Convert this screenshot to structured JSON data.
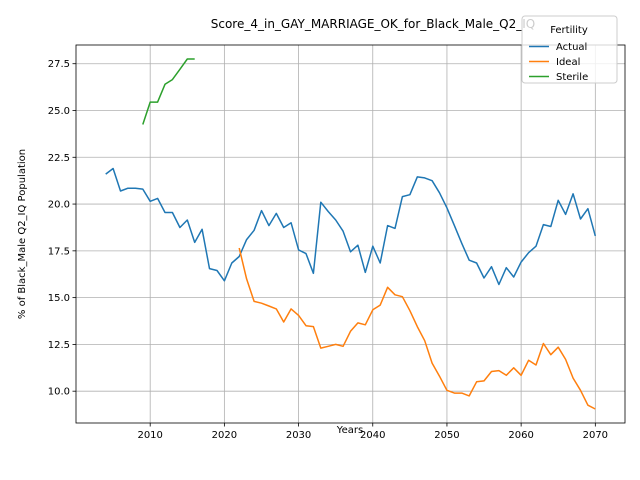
{
  "chart_data": {
    "type": "line",
    "title": "Score_4_in_GAY_MARRIAGE_OK_for_Black_Male_Q2_IQ",
    "xlabel": "Years",
    "ylabel": "% of Black_Male Q2_IQ Population",
    "xlim": [
      2000,
      2074
    ],
    "ylim": [
      8.3,
      28.5
    ],
    "x_ticks": [
      2010,
      2020,
      2030,
      2040,
      2050,
      2060,
      2070
    ],
    "y_ticks": [
      10.0,
      12.5,
      15.0,
      17.5,
      20.0,
      22.5,
      25.0,
      27.5
    ],
    "x_tick_labels": [
      "2010",
      "2020",
      "2030",
      "2040",
      "2050",
      "2060",
      "2070"
    ],
    "y_tick_labels": [
      "10.0",
      "12.5",
      "15.0",
      "17.5",
      "20.0",
      "22.5",
      "25.0",
      "27.5"
    ],
    "grid": true,
    "legend": {
      "title": "Fertility",
      "placement": "top-right"
    },
    "series": [
      {
        "name": "Actual",
        "color": "#1f77b4",
        "points": [
          [
            2004,
            21.6
          ],
          [
            2005,
            21.9
          ],
          [
            2006,
            20.7
          ],
          [
            2007,
            20.85
          ],
          [
            2008,
            20.85
          ],
          [
            2009,
            20.8
          ],
          [
            2010,
            20.15
          ],
          [
            2011,
            20.3
          ],
          [
            2012,
            19.55
          ],
          [
            2013,
            19.55
          ],
          [
            2014,
            18.75
          ],
          [
            2015,
            19.15
          ],
          [
            2016,
            17.95
          ],
          [
            2017,
            18.65
          ],
          [
            2018,
            16.55
          ],
          [
            2019,
            16.45
          ],
          [
            2020,
            15.9
          ],
          [
            2021,
            16.85
          ],
          [
            2022,
            17.2
          ],
          [
            2023,
            18.1
          ],
          [
            2024,
            18.6
          ],
          [
            2025,
            19.65
          ],
          [
            2026,
            18.85
          ],
          [
            2027,
            19.5
          ],
          [
            2028,
            18.75
          ],
          [
            2029,
            19.0
          ],
          [
            2030,
            17.55
          ],
          [
            2031,
            17.35
          ],
          [
            2032,
            16.3
          ],
          [
            2033,
            20.1
          ],
          [
            2034,
            19.6
          ],
          [
            2035,
            19.15
          ],
          [
            2036,
            18.55
          ],
          [
            2037,
            17.45
          ],
          [
            2038,
            17.8
          ],
          [
            2039,
            16.35
          ],
          [
            2040,
            17.75
          ],
          [
            2041,
            16.85
          ],
          [
            2042,
            18.85
          ],
          [
            2043,
            18.7
          ],
          [
            2044,
            20.4
          ],
          [
            2045,
            20.5
          ],
          [
            2046,
            21.45
          ],
          [
            2047,
            21.4
          ],
          [
            2048,
            21.25
          ],
          [
            2049,
            20.6
          ],
          [
            2050,
            19.8
          ],
          [
            2051,
            18.85
          ],
          [
            2052,
            17.9
          ],
          [
            2053,
            17.0
          ],
          [
            2054,
            16.85
          ],
          [
            2055,
            16.05
          ],
          [
            2056,
            16.65
          ],
          [
            2057,
            15.7
          ],
          [
            2058,
            16.6
          ],
          [
            2059,
            16.1
          ],
          [
            2060,
            16.9
          ],
          [
            2061,
            17.4
          ],
          [
            2062,
            17.75
          ],
          [
            2063,
            18.9
          ],
          [
            2064,
            18.8
          ],
          [
            2065,
            20.2
          ],
          [
            2066,
            19.45
          ],
          [
            2067,
            20.55
          ],
          [
            2068,
            19.2
          ],
          [
            2069,
            19.75
          ],
          [
            2070,
            18.3
          ]
        ]
      },
      {
        "name": "Ideal",
        "color": "#ff7f0e",
        "points": [
          [
            2022,
            17.65
          ],
          [
            2023,
            16.0
          ],
          [
            2024,
            14.8
          ],
          [
            2025,
            14.7
          ],
          [
            2026,
            14.55
          ],
          [
            2027,
            14.4
          ],
          [
            2028,
            13.7
          ],
          [
            2029,
            14.4
          ],
          [
            2030,
            14.05
          ],
          [
            2031,
            13.5
          ],
          [
            2032,
            13.45
          ],
          [
            2033,
            12.3
          ],
          [
            2034,
            12.4
          ],
          [
            2035,
            12.5
          ],
          [
            2036,
            12.4
          ],
          [
            2037,
            13.2
          ],
          [
            2038,
            13.65
          ],
          [
            2039,
            13.55
          ],
          [
            2040,
            14.35
          ],
          [
            2041,
            14.6
          ],
          [
            2042,
            15.55
          ],
          [
            2043,
            15.15
          ],
          [
            2044,
            15.05
          ],
          [
            2045,
            14.3
          ],
          [
            2046,
            13.45
          ],
          [
            2047,
            12.7
          ],
          [
            2048,
            11.5
          ],
          [
            2049,
            10.8
          ],
          [
            2050,
            10.05
          ],
          [
            2051,
            9.9
          ],
          [
            2052,
            9.9
          ],
          [
            2053,
            9.75
          ],
          [
            2054,
            10.5
          ],
          [
            2055,
            10.55
          ],
          [
            2056,
            11.05
          ],
          [
            2057,
            11.1
          ],
          [
            2058,
            10.85
          ],
          [
            2059,
            11.25
          ],
          [
            2060,
            10.85
          ],
          [
            2061,
            11.65
          ],
          [
            2062,
            11.4
          ],
          [
            2063,
            12.55
          ],
          [
            2064,
            11.95
          ],
          [
            2065,
            12.35
          ],
          [
            2066,
            11.7
          ],
          [
            2067,
            10.7
          ],
          [
            2068,
            10.05
          ],
          [
            2069,
            9.25
          ],
          [
            2070,
            9.05
          ]
        ]
      },
      {
        "name": "Sterile",
        "color": "#2ca02c",
        "points": [
          [
            2009,
            24.25
          ],
          [
            2010,
            25.45
          ],
          [
            2011,
            25.45
          ],
          [
            2012,
            26.4
          ],
          [
            2013,
            26.65
          ],
          [
            2014,
            27.2
          ],
          [
            2015,
            27.75
          ],
          [
            2016,
            27.75
          ]
        ]
      }
    ]
  }
}
